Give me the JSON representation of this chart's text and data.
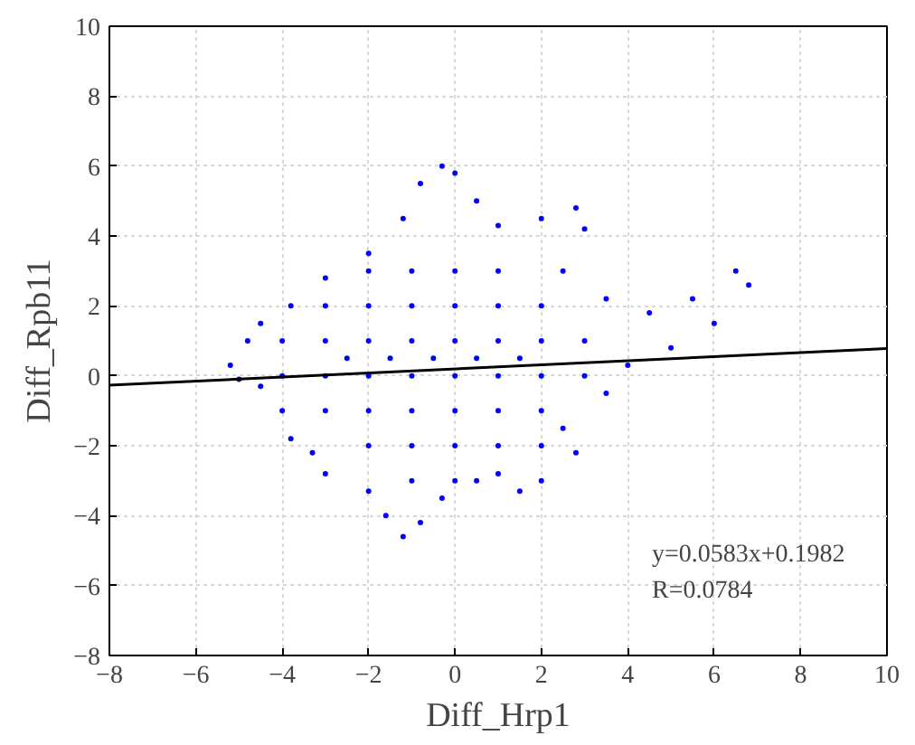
{
  "chart_data": {
    "type": "scatter",
    "xlabel": "Diff_Hrp1",
    "ylabel": "Diff_Rpb11",
    "xlim": [
      -8,
      10
    ],
    "ylim": [
      -8,
      10
    ],
    "xticks": [
      -8,
      -6,
      -4,
      -2,
      0,
      2,
      4,
      6,
      8,
      10
    ],
    "yticks": [
      -8,
      -6,
      -4,
      -2,
      0,
      2,
      4,
      6,
      8,
      10
    ],
    "grid": true,
    "series": [
      {
        "marker": "circle",
        "color": "#0000ff",
        "x": [
          -5.2,
          -4.8,
          -4.5,
          -3.8,
          -3,
          -2,
          -1.2,
          -0.8,
          -0.3,
          0,
          0.5,
          1,
          2,
          2.8,
          3,
          2.5,
          3.5,
          4.5,
          5.5,
          6.5,
          6.8,
          6,
          5,
          4,
          3.5,
          2.5,
          2.8,
          2,
          1.5,
          1,
          0.5,
          -0.3,
          -0.8,
          -1.2,
          -1.6,
          -2,
          -3,
          -3.3,
          -3.8,
          -4,
          -4.5,
          -5,
          -4,
          -3,
          -2,
          -1,
          0,
          1,
          2,
          3,
          -4,
          -3,
          -2,
          -1,
          0,
          1,
          2,
          3,
          -3,
          -2,
          -1,
          0,
          1,
          2,
          -3,
          -2,
          -1,
          0,
          1,
          2,
          -2,
          -1,
          0,
          1,
          2,
          -2,
          -1,
          0,
          1,
          -1,
          0,
          -1.5,
          -0.5,
          0.5,
          -2.5,
          1.5
        ],
        "values": [
          0.3,
          1.0,
          1.5,
          2.0,
          2.8,
          3.5,
          4.5,
          5.5,
          6.0,
          5.8,
          5.0,
          4.3,
          4.5,
          4.8,
          4.2,
          3.0,
          2.2,
          1.8,
          2.2,
          3.0,
          2.6,
          1.5,
          0.8,
          0.3,
          -0.5,
          -1.5,
          -2.2,
          -3.0,
          -3.3,
          -2.8,
          -3.0,
          -3.5,
          -4.2,
          -4.6,
          -4.0,
          -3.3,
          -2.8,
          -2.2,
          -1.8,
          -1.0,
          -0.3,
          -0.1,
          0,
          0,
          0,
          0,
          0,
          0,
          0,
          0,
          1,
          1,
          1,
          1,
          1,
          1,
          1,
          1,
          2,
          2,
          2,
          2,
          2,
          2,
          -1,
          -1,
          -1,
          -1,
          -1,
          -1,
          -2,
          -2,
          -2,
          -2,
          -2,
          3,
          3,
          3,
          3,
          -3,
          -3,
          0.5,
          0.5,
          0.5,
          0.5,
          0.5
        ]
      },
      {
        "type": "line",
        "color": "#000000",
        "x": [
          -8,
          10
        ],
        "values": [
          -0.27,
          0.78
        ]
      }
    ],
    "annotations": [
      "y=0.0583x+0.1982",
      "R=0.0784"
    ]
  }
}
